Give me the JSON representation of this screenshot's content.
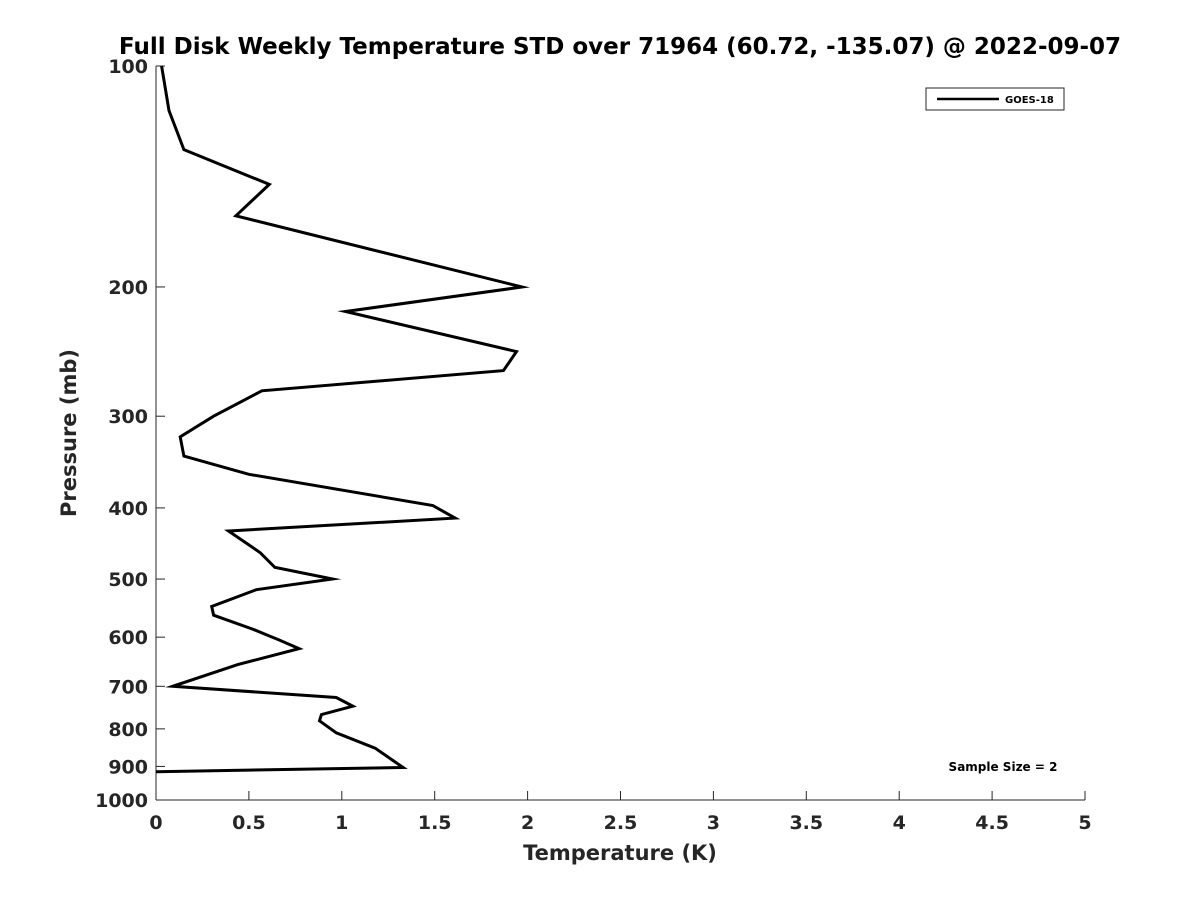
{
  "chart_data": {
    "type": "line",
    "title": "Full Disk Weekly Temperature STD over 71964 (60.72, -135.07) @ 2022-09-07",
    "xlabel": "Temperature (K)",
    "ylabel": "Pressure (mb)",
    "xlim": [
      0,
      5
    ],
    "ylim": [
      100,
      1000
    ],
    "y_scale": "log",
    "y_reversed": true,
    "x_ticks": [
      "0",
      "0.5",
      "1",
      "1.5",
      "2",
      "2.5",
      "3",
      "3.5",
      "4",
      "4.5",
      "5"
    ],
    "x_tick_values": [
      0,
      0.5,
      1,
      1.5,
      2,
      2.5,
      3,
      3.5,
      4,
      4.5,
      5
    ],
    "y_ticks": [
      "100",
      "200",
      "300",
      "400",
      "500",
      "600",
      "700",
      "800",
      "900",
      "1000"
    ],
    "y_tick_values": [
      100,
      200,
      300,
      400,
      500,
      600,
      700,
      800,
      900,
      1000
    ],
    "grid": false,
    "legend_position": "top-right",
    "annotation": "Sample Size = 2",
    "colors": {
      "line": "#000000",
      "axis": "#262626"
    },
    "series": [
      {
        "name": "GOES-18",
        "x": [
          0.03,
          0.07,
          0.15,
          0.61,
          0.43,
          1.97,
          1.02,
          1.94,
          1.87,
          0.57,
          0.31,
          0.13,
          0.15,
          0.5,
          1.49,
          1.61,
          0.39,
          0.56,
          0.64,
          0.95,
          0.54,
          0.3,
          0.31,
          0.52,
          0.66,
          0.77,
          0.44,
          0.09,
          0.97,
          1.06,
          0.89,
          0.88,
          0.97,
          1.18,
          1.33,
          0.0
        ],
        "y": [
          100,
          115,
          130,
          145,
          160,
          200,
          216,
          245,
          260,
          277,
          300,
          320,
          340,
          360,
          397,
          413,
          430,
          460,
          482,
          500,
          517,
          545,
          560,
          585,
          605,
          622,
          654,
          700,
          725,
          745,
          765,
          780,
          810,
          850,
          903,
          915
        ]
      }
    ]
  }
}
